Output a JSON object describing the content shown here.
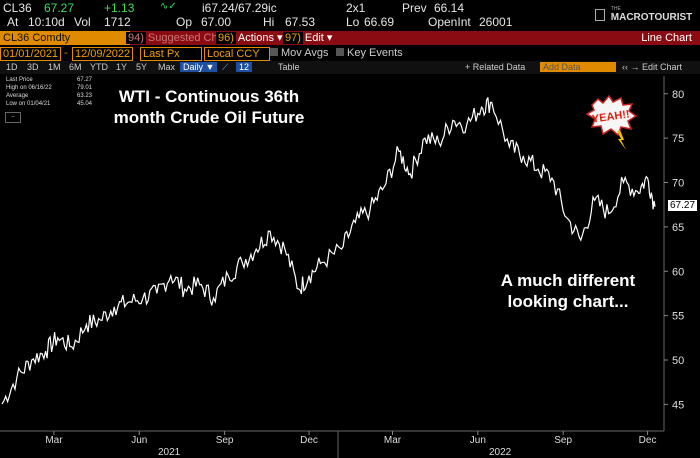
{
  "ticker_bar": {
    "ticker": "CL36",
    "last": "67.27",
    "change": "+1.13",
    "bid_ask": "i67.24/67.29ic",
    "size": "2x1",
    "prev_label": "Prev",
    "prev": "66.14",
    "at_label": "At",
    "time": "10:10d",
    "vol_label": "Vol",
    "vol": "1712",
    "open_label": "Op",
    "open": "67.00",
    "high_label": "Hi",
    "high": "67.53",
    "low_label": "Lo",
    "low": "66.69",
    "oi_label": "OpenInt",
    "oi": "26001"
  },
  "logo": {
    "small": "THE",
    "name": "MACROTOURIST"
  },
  "toolbar": {
    "security": "CL36 Comdty",
    "suggested": "Suggested Charts",
    "actions_num": "96)",
    "actions": "Actions ▾",
    "edit_num": "97)",
    "edit": "Edit ▾",
    "right_label": "Line Chart"
  },
  "options": {
    "start_date": "01/01/2021",
    "end_date": "12/09/2022",
    "field": "Last Px",
    "currency": "Local CCY",
    "mov_avgs": "Mov Avgs",
    "key_events": "Key Events"
  },
  "periods": [
    "1D",
    "3D",
    "1M",
    "6M",
    "YTD",
    "1Y",
    "5Y",
    "Max"
  ],
  "period_select": "Daily ▼",
  "period_num": "12",
  "table_label": "Table",
  "related": "+ Related Data",
  "add_data": "Add Data",
  "edit_chart": "‹‹ → Edit Chart",
  "legend": [
    {
      "label": "Last Price",
      "value": "67.27"
    },
    {
      "label": "High on 06/16/22",
      "value": "79.01"
    },
    {
      "label": "Average",
      "value": "63.23"
    },
    {
      "label": "Low on 01/04/21",
      "value": "45.04"
    }
  ],
  "annotations": {
    "title_line1": "WTI - Continuous 36th",
    "title_line2": "month Crude Oil Future",
    "note_line1": "A much different",
    "note_line2": "looking chart...",
    "sticker": "YEAH!!"
  },
  "colors": {
    "accent": "#e08a00",
    "bar_red": "#8a0b12",
    "up": "#3ddc5a"
  },
  "chart_data": {
    "type": "line",
    "title": "WTI - Continuous 36th month Crude Oil Future",
    "x_tick_labels": [
      "Mar",
      "Jun",
      "Sep",
      "Dec",
      "Mar",
      "Jun",
      "Sep",
      "Dec"
    ],
    "year_labels": [
      "2021",
      "2022"
    ],
    "y_ticks": [
      45,
      50,
      55,
      60,
      65,
      70,
      75,
      80
    ],
    "ylim": [
      42,
      82
    ],
    "last_value_label": "67.27",
    "series": [
      {
        "x": [
          "2021-01-04",
          "2021-01-20",
          "2021-02-05",
          "2021-02-20",
          "2021-03-05",
          "2021-03-20",
          "2021-04-05",
          "2021-04-20",
          "2021-05-05",
          "2021-05-20",
          "2021-06-05",
          "2021-06-20",
          "2021-07-05",
          "2021-07-20",
          "2021-08-05",
          "2021-08-20",
          "2021-09-05",
          "2021-09-20",
          "2021-10-05",
          "2021-10-20",
          "2021-11-05",
          "2021-11-20",
          "2021-12-01",
          "2021-12-15",
          "2022-01-05",
          "2022-01-20",
          "2022-02-05",
          "2022-02-20",
          "2022-03-08",
          "2022-03-20",
          "2022-04-05",
          "2022-04-20",
          "2022-05-05",
          "2022-05-20",
          "2022-06-05",
          "2022-06-16",
          "2022-07-05",
          "2022-07-20",
          "2022-08-05",
          "2022-08-20",
          "2022-09-05",
          "2022-09-20",
          "2022-10-05",
          "2022-10-20",
          "2022-11-05",
          "2022-11-20",
          "2022-12-01",
          "2022-12-09"
        ],
        "values": [
          45.04,
          48,
          50,
          51,
          52.5,
          51.5,
          54,
          54.5,
          56,
          56.5,
          57,
          57.5,
          59.5,
          58,
          58.5,
          57,
          59.5,
          61,
          62.5,
          64.5,
          62.5,
          58,
          59.5,
          61,
          62.5,
          65.5,
          67,
          69.5,
          73.5,
          71,
          75,
          74.5,
          77,
          76.5,
          78.5,
          79.01,
          74,
          73,
          71.5,
          70.5,
          66,
          63.5,
          68,
          66.5,
          70,
          69,
          70.5,
          67.27
        ]
      }
    ]
  }
}
